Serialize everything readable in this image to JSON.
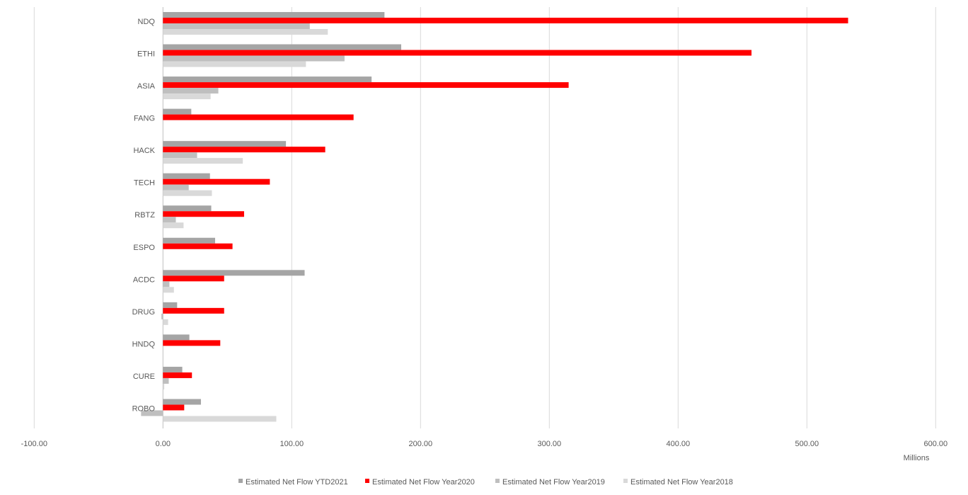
{
  "chart_data": {
    "type": "bar",
    "orientation": "horizontal",
    "title": "",
    "xlabel": "",
    "ylabel": "",
    "units_label": "Millions",
    "xlim": [
      -100,
      600
    ],
    "xticks": [
      -100,
      0,
      100,
      200,
      300,
      400,
      500,
      600
    ],
    "xtick_labels": [
      "-100.00",
      "0.00",
      "100.00",
      "200.00",
      "300.00",
      "400.00",
      "500.00",
      "600.00"
    ],
    "grid": true,
    "legend_placement": "bottom",
    "categories": [
      "NDQ",
      "ETHI",
      "ASIA",
      "FANG",
      "HACK",
      "TECH",
      "RBTZ",
      "ESPO",
      "ACDC",
      "DRUG",
      "HNDQ",
      "CURE",
      "ROBO"
    ],
    "series": [
      {
        "name": "Estimated Net Flow YTD2021",
        "color": "#a5a5a5",
        "values": [
          172,
          185,
          162,
          22,
          95.5,
          36.5,
          37.5,
          40.5,
          110,
          11,
          20.5,
          15,
          29.5
        ]
      },
      {
        "name": "Estimated Net Flow Year2020",
        "color": "#ff0000",
        "values": [
          532,
          457,
          315,
          148,
          126,
          83,
          63,
          54,
          47.5,
          47.5,
          44.5,
          22.5,
          16.5
        ]
      },
      {
        "name": "Estimated Net Flow Year2019",
        "color": "#bfbfbf",
        "values": [
          114,
          141,
          43,
          0,
          26.5,
          20,
          10,
          0,
          5,
          -1.2,
          0,
          4.5,
          -17
        ]
      },
      {
        "name": "Estimated Net Flow Year2018",
        "color": "#d9d9d9",
        "values": [
          128,
          111,
          37,
          0,
          62,
          38,
          16,
          0,
          8.5,
          4,
          0,
          1,
          88
        ]
      }
    ]
  }
}
